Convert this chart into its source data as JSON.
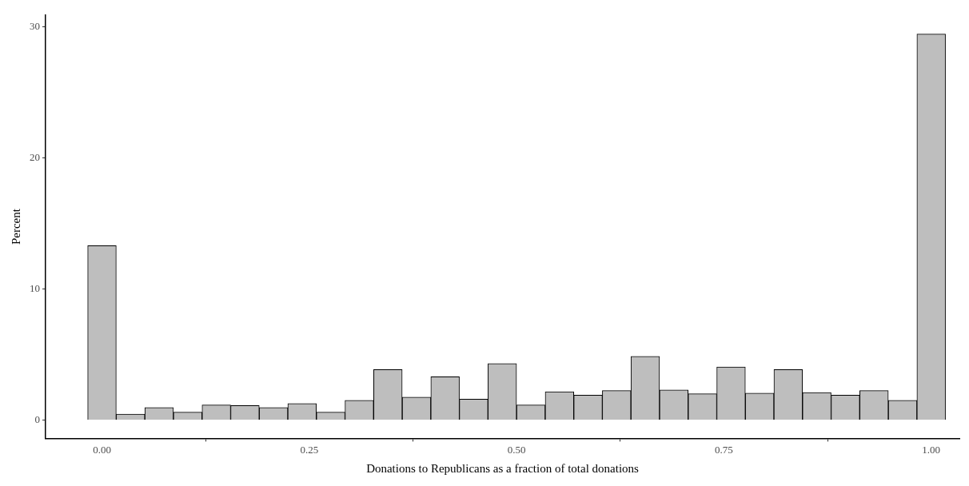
{
  "chart_data": {
    "type": "histogram",
    "xlabel": "Donations to Republicans as a fraction of total donations",
    "ylabel": "Percent",
    "bins": [
      -0.0172,
      0.0172,
      0.0517,
      0.0862,
      0.1207,
      0.1552,
      0.1897,
      0.2241,
      0.2586,
      0.2931,
      0.3276,
      0.3621,
      0.3966,
      0.431,
      0.4655,
      0.5,
      0.5345,
      0.569,
      0.6034,
      0.6379,
      0.6724,
      0.7069,
      0.7414,
      0.7759,
      0.8103,
      0.8448,
      0.8793,
      0.9138,
      0.9483,
      0.9828,
      1.0172
    ],
    "values": [
      13.3,
      0.45,
      0.95,
      0.6,
      1.15,
      1.1,
      0.95,
      1.25,
      0.6,
      1.5,
      3.85,
      1.75,
      3.3,
      1.6,
      4.3,
      1.15,
      2.15,
      1.9,
      2.25,
      4.85,
      2.3,
      2.0,
      4.05,
      2.05,
      3.85,
      2.1,
      1.9,
      2.25,
      1.5,
      29.45
    ],
    "color": "#bebebe",
    "xlim": [
      -0.068,
      1.034
    ],
    "ylim": [
      -1.4,
      30.9
    ],
    "xticks": [
      {
        "value": 0,
        "label": "0.00"
      },
      {
        "value": 0.25,
        "label": "0.25"
      },
      {
        "value": 0.5,
        "label": "0.50"
      },
      {
        "value": 0.75,
        "label": "0.75"
      },
      {
        "value": 1,
        "label": "1.00"
      }
    ],
    "yticks": [
      0,
      10,
      20,
      30
    ],
    "grid": false
  }
}
